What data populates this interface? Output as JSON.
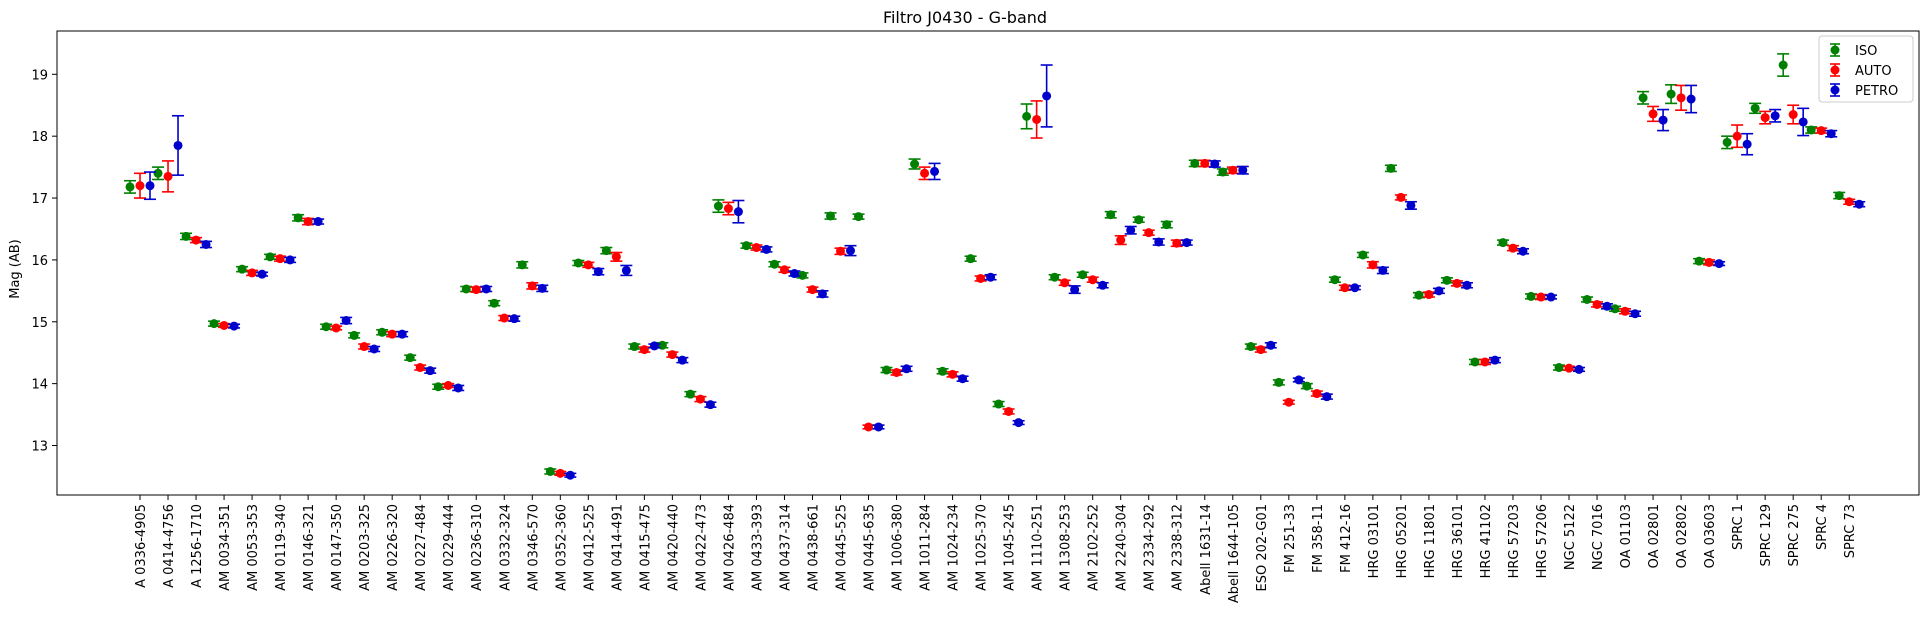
{
  "chart_data": {
    "type": "scatter",
    "title": "Filtro J0430 - G-band",
    "xlabel": "",
    "ylabel": "Mag (AB)",
    "ylim": [
      12.2,
      19.7
    ],
    "yticks": [
      13,
      14,
      15,
      16,
      17,
      18,
      19
    ],
    "error_bars": true,
    "legend_position": "top-right",
    "grid": false,
    "categories": [
      "A 0336-4905",
      "A 0414-4756",
      "A 1256-1710",
      "AM 0034-351",
      "AM 0053-353",
      "AM 0119-340",
      "AM 0146-321",
      "AM 0147-350",
      "AM 0203-325",
      "AM 0226-320",
      "AM 0227-484",
      "AM 0229-444",
      "AM 0236-310",
      "AM 0332-324",
      "AM 0346-570",
      "AM 0352-360",
      "AM 0412-525",
      "AM 0414-491",
      "AM 0415-475",
      "AM 0420-440",
      "AM 0422-473",
      "AM 0426-484",
      "AM 0433-393",
      "AM 0437-314",
      "AM 0438-661",
      "AM 0445-525",
      "AM 0445-635",
      "AM 1006-380",
      "AM 1011-284",
      "AM 1024-234",
      "AM 1025-370",
      "AM 1045-245",
      "AM 1110-251",
      "AM 1308-253",
      "AM 2102-252",
      "AM 2240-304",
      "AM 2334-292",
      "AM 2338-312",
      "Abell 1631-14",
      "Abell 1644-105",
      "ESO 202-G01",
      "FM 251-33",
      "FM 358-11",
      "FM 412-16",
      "HRG 03101",
      "HRG 05201",
      "HRG 11801",
      "HRG 36101",
      "HRG 41102",
      "HRG 57203",
      "HRG 57206",
      "NGC 5122",
      "NGC 7016",
      "OA 01103",
      "OA 02801",
      "OA 02802",
      "OA 03603",
      "SPRC 1",
      "SPRC 129",
      "SPRC 275",
      "SPRC 4",
      "SPRC 73"
    ],
    "series": [
      {
        "name": "ISO",
        "color": "#008000",
        "values": [
          17.18,
          17.4,
          16.38,
          14.97,
          15.85,
          16.05,
          16.68,
          14.92,
          14.78,
          14.83,
          14.42,
          13.95,
          15.53,
          15.3,
          15.92,
          12.58,
          15.95,
          16.15,
          14.6,
          14.62,
          13.83,
          16.87,
          16.23,
          15.93,
          15.75,
          16.71,
          16.7,
          14.22,
          17.55,
          14.2,
          16.02,
          13.67,
          18.32,
          15.72,
          15.76,
          16.73,
          16.65,
          16.57,
          17.56,
          17.42,
          14.6,
          14.02,
          13.96,
          15.68,
          16.08,
          17.48,
          15.43,
          15.67,
          14.35,
          16.28,
          15.41,
          14.26,
          15.36,
          15.21,
          18.62,
          18.68,
          15.98,
          17.9,
          18.45,
          19.15,
          18.1,
          17.04
        ],
        "errors": [
          0.1,
          0.1,
          0.05,
          0.04,
          0.04,
          0.04,
          0.05,
          0.04,
          0.04,
          0.04,
          0.04,
          0.04,
          0.04,
          0.04,
          0.05,
          0.04,
          0.04,
          0.05,
          0.04,
          0.04,
          0.04,
          0.1,
          0.04,
          0.04,
          0.04,
          0.05,
          0.04,
          0.04,
          0.08,
          0.04,
          0.04,
          0.04,
          0.2,
          0.04,
          0.04,
          0.05,
          0.04,
          0.05,
          0.05,
          0.05,
          0.04,
          0.04,
          0.04,
          0.04,
          0.04,
          0.05,
          0.04,
          0.04,
          0.04,
          0.04,
          0.04,
          0.04,
          0.04,
          0.04,
          0.1,
          0.15,
          0.04,
          0.1,
          0.08,
          0.18,
          0.05,
          0.05
        ]
      },
      {
        "name": "AUTO",
        "color": "#ff0000",
        "values": [
          17.2,
          17.35,
          16.32,
          14.94,
          15.79,
          16.02,
          16.62,
          14.9,
          14.6,
          14.8,
          14.26,
          13.97,
          15.52,
          15.06,
          15.58,
          12.55,
          15.92,
          16.05,
          14.55,
          14.47,
          13.75,
          16.83,
          16.2,
          15.84,
          15.52,
          16.14,
          13.3,
          14.18,
          17.4,
          14.15,
          15.7,
          13.55,
          18.27,
          15.63,
          15.68,
          16.32,
          16.44,
          16.27,
          17.56,
          17.45,
          14.55,
          13.7,
          13.84,
          15.55,
          15.92,
          17.01,
          15.44,
          15.62,
          14.35,
          16.19,
          15.4,
          14.25,
          15.28,
          15.17,
          18.36,
          18.62,
          15.96,
          18.0,
          18.3,
          18.35,
          18.09,
          16.94
        ],
        "errors": [
          0.2,
          0.25,
          0.04,
          0.03,
          0.04,
          0.04,
          0.05,
          0.03,
          0.04,
          0.04,
          0.04,
          0.03,
          0.04,
          0.04,
          0.05,
          0.03,
          0.04,
          0.07,
          0.04,
          0.04,
          0.04,
          0.1,
          0.04,
          0.04,
          0.04,
          0.05,
          0.03,
          0.04,
          0.1,
          0.04,
          0.04,
          0.04,
          0.3,
          0.04,
          0.04,
          0.07,
          0.04,
          0.05,
          0.05,
          0.05,
          0.04,
          0.03,
          0.04,
          0.04,
          0.05,
          0.04,
          0.04,
          0.04,
          0.04,
          0.04,
          0.04,
          0.03,
          0.04,
          0.04,
          0.12,
          0.2,
          0.04,
          0.18,
          0.1,
          0.15,
          0.04,
          0.04
        ]
      },
      {
        "name": "PETRO",
        "color": "#0000cc",
        "values": [
          17.2,
          17.85,
          16.25,
          14.93,
          15.77,
          16.0,
          16.62,
          15.02,
          14.56,
          14.8,
          14.21,
          13.93,
          15.53,
          15.05,
          15.54,
          12.52,
          15.81,
          15.83,
          14.61,
          14.38,
          13.66,
          16.78,
          16.17,
          15.78,
          15.45,
          16.15,
          13.3,
          14.24,
          17.43,
          14.08,
          15.72,
          13.37,
          18.65,
          15.52,
          15.59,
          16.48,
          16.29,
          16.28,
          17.55,
          17.45,
          14.62,
          14.06,
          13.79,
          15.55,
          15.83,
          16.88,
          15.5,
          15.59,
          14.38,
          16.14,
          15.4,
          14.23,
          15.25,
          15.13,
          18.26,
          18.6,
          15.94,
          17.87,
          18.33,
          18.23,
          18.04,
          16.9
        ],
        "errors": [
          0.22,
          0.48,
          0.05,
          0.03,
          0.03,
          0.04,
          0.04,
          0.05,
          0.04,
          0.04,
          0.04,
          0.04,
          0.04,
          0.04,
          0.05,
          0.03,
          0.05,
          0.08,
          0.03,
          0.04,
          0.04,
          0.18,
          0.04,
          0.04,
          0.05,
          0.08,
          0.03,
          0.04,
          0.13,
          0.04,
          0.04,
          0.03,
          0.5,
          0.06,
          0.04,
          0.06,
          0.05,
          0.04,
          0.05,
          0.06,
          0.04,
          0.03,
          0.04,
          0.03,
          0.05,
          0.06,
          0.04,
          0.04,
          0.04,
          0.04,
          0.03,
          0.03,
          0.04,
          0.04,
          0.17,
          0.22,
          0.03,
          0.17,
          0.1,
          0.22,
          0.05,
          0.04
        ]
      }
    ]
  }
}
